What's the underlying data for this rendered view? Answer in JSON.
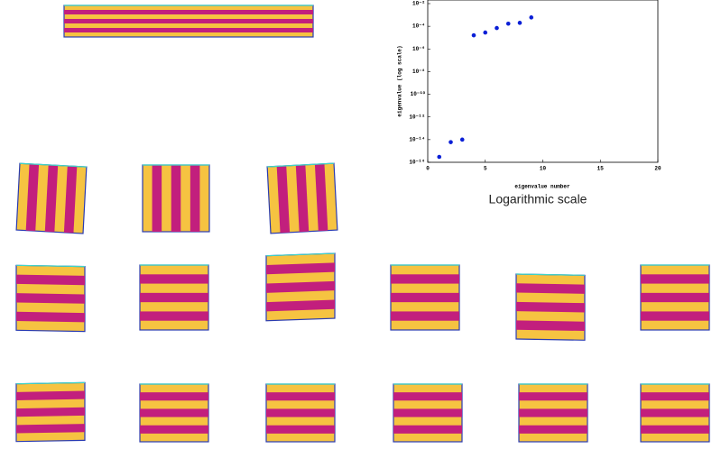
{
  "chart_data": {
    "type": "scatter",
    "x_label": "eigenvalue number",
    "y_label": "eigenvalue (log scale)",
    "caption": "Logarithmic scale",
    "log_y": true,
    "color": "#0a1fd6",
    "x": [
      1,
      2,
      3,
      4,
      5,
      6,
      7,
      8,
      9
    ],
    "values": [
      3e-16,
      6e-15,
      1e-14,
      1.6e-05,
      2.8e-05,
      7e-05,
      0.00017,
      0.0002,
      0.0006
    ],
    "xlim": [
      0,
      20
    ],
    "xticks": [
      0,
      5,
      10,
      15,
      20
    ],
    "ylim": [
      1e-16,
      0.01
    ],
    "yticks": [
      {
        "value": 1e-16,
        "label": "10⁻¹⁶"
      },
      {
        "value": 1e-14,
        "label": "10⁻¹⁴"
      },
      {
        "value": 1e-12,
        "label": "10⁻¹²"
      },
      {
        "value": 1e-10,
        "label": "10⁻¹⁰"
      },
      {
        "value": 1e-08,
        "label": "10⁻⁸"
      },
      {
        "value": 1e-06,
        "label": "10⁻⁶"
      },
      {
        "value": 0.0001,
        "label": "10⁻⁴"
      },
      {
        "value": 0.01,
        "label": "10⁻²"
      }
    ]
  }
}
